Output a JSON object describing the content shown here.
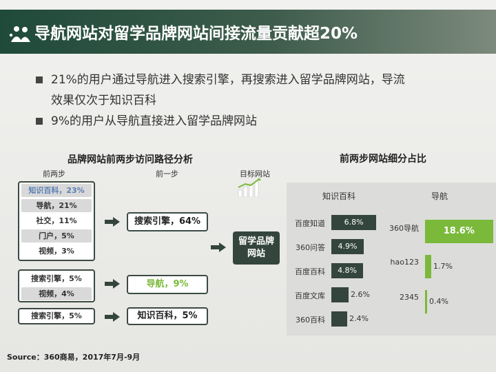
{
  "header": {
    "title": "导航网站对留学品牌网站间接流量贡献超20%"
  },
  "bullets": [
    "21%的用户通过导航进入搜索引擎，再搜索进入留学品牌网站，导流",
    "效果仅次于知识百科",
    "9%的用户从导航直接进入留学品牌网站"
  ],
  "path_analysis": {
    "title": "品牌网站前两步访问路径分析",
    "col_two_steps": "前两步",
    "col_one_step": "前一步",
    "col_target": "目标网站",
    "group1_rows": [
      "知识百科，23%",
      "导航，21%",
      "社交，11%",
      "门户，5%",
      "视频，3%"
    ],
    "group1_step": "搜索引擎，64%",
    "group2_rows": [
      "搜索引擎，5%",
      "视频，4%"
    ],
    "group2_step": "导航，9%",
    "group3_rows": [
      "搜索引擎，5%"
    ],
    "group3_step": "知识百科，5%",
    "target": [
      "留学品牌",
      "网站"
    ]
  },
  "share_chart": {
    "title": "前两步网站细分占比",
    "left_header": "知识百科",
    "right_header": "导航"
  },
  "chart_data": {
    "type": "bar",
    "title": "前两步网站细分占比",
    "groups": [
      {
        "name": "知识百科",
        "categories": [
          "百度知道",
          "360问答",
          "百度百科",
          "百度文库",
          "360百科"
        ],
        "values": [
          6.8,
          4.9,
          4.8,
          2.6,
          2.4
        ],
        "labels": [
          "6.8%",
          "4.9%",
          "4.8%",
          "2.6%",
          "2.4%"
        ],
        "color": "#33453c"
      },
      {
        "name": "导航",
        "categories": [
          "360导航",
          "hao123",
          "2345"
        ],
        "values": [
          18.6,
          1.7,
          0.4
        ],
        "labels": [
          "18.6%",
          "1.7%",
          "0.4%"
        ],
        "color": "#7ab93a"
      }
    ]
  },
  "source": "Source：360商易，2017年7月-9月",
  "colors": {
    "header_dark": "#1f4a3a",
    "dark_bar": "#33453c",
    "accent_green": "#7ab93a",
    "first_row_blue": "#5a7fb2"
  }
}
